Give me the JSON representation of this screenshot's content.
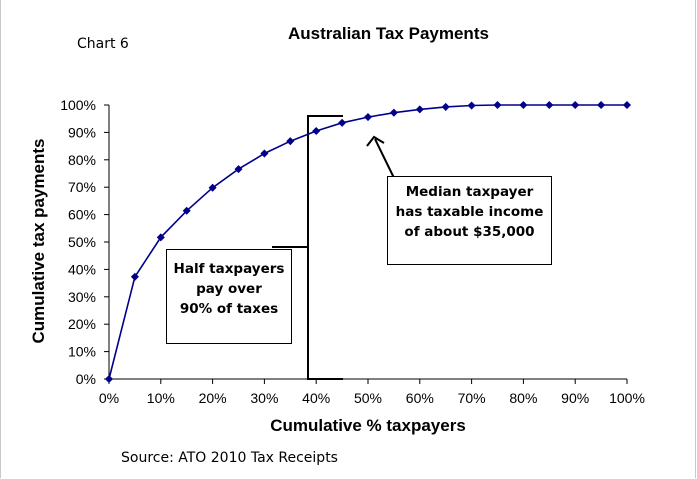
{
  "chart_label": "Chart 6",
  "source": "Source: ATO 2010 Tax Receipts",
  "colors": {
    "series": "#00008B",
    "axes": "#000000"
  },
  "chart_data": {
    "type": "line",
    "title": "Australian Tax Payments",
    "xlabel": "Cumulative % taxpayers",
    "ylabel": "Cumulative tax payments",
    "xlim": [
      0,
      100
    ],
    "ylim": [
      0,
      100
    ],
    "x_ticks": [
      "0%",
      "10%",
      "20%",
      "30%",
      "40%",
      "50%",
      "60%",
      "70%",
      "80%",
      "90%",
      "100%"
    ],
    "y_ticks": [
      "0%",
      "10%",
      "20%",
      "30%",
      "40%",
      "50%",
      "60%",
      "70%",
      "80%",
      "90%",
      "100%"
    ],
    "grid": false,
    "legend": "none",
    "x": [
      0,
      5,
      10,
      15,
      20,
      25,
      30,
      35,
      40,
      45,
      50,
      55,
      60,
      65,
      70,
      75,
      80,
      85,
      90,
      95,
      100
    ],
    "series": [
      {
        "values": [
          0,
          37.3,
          51.7,
          61.4,
          69.8,
          76.6,
          82.3,
          86.8,
          90.5,
          93.5,
          95.6,
          97.2,
          98.4,
          99.3,
          99.8,
          100,
          100,
          100,
          100,
          100,
          100
        ]
      }
    ],
    "annotations": [
      {
        "lines": [
          "Median taxpayer",
          "has taxable income",
          "of about $35,000"
        ]
      },
      {
        "lines": [
          "Half taxpayers",
          "pay over",
          "90% of taxes"
        ]
      }
    ]
  }
}
